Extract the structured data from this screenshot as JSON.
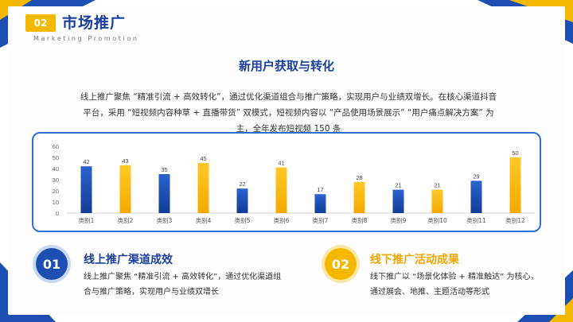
{
  "header": {
    "badge": "02",
    "title": "市场推广",
    "subtitle": "Marketing Promotion"
  },
  "main": {
    "section_title": "新用户获取与转化",
    "intro": "线上推广聚焦 “精准引流 + 高效转化”，通过优化渠道组合与推广策略，实现用户与业绩双增长。在核心渠道抖音平台，采用 “短视频内容种草 + 直播带货” 双模式，短视频内容以 “产品使用场景展示” “用户痛点解决方案” 为主，全年发布短视频 150 条"
  },
  "chart_data": {
    "type": "bar",
    "categories": [
      "类别1",
      "类别2",
      "类别3",
      "类别4",
      "类别5",
      "类别6",
      "类别7",
      "类别8",
      "类别9",
      "类别10",
      "类别11",
      "类别12"
    ],
    "values": [
      42,
      43,
      35,
      45,
      22,
      41,
      17,
      28,
      21,
      21,
      29,
      50
    ],
    "ylim": [
      0,
      60
    ],
    "yticks": [
      0,
      10,
      20,
      30,
      40,
      50,
      60
    ],
    "bar_colors": [
      "#1d4fb3",
      "#f5b800",
      "#1d4fb3",
      "#f5b800",
      "#1d4fb3",
      "#f5b800",
      "#1d4fb3",
      "#f5b800",
      "#1d4fb3",
      "#f5b800",
      "#1d4fb3",
      "#f5b800"
    ],
    "data_labels": true,
    "grid": false
  },
  "blocks": [
    {
      "number": "01",
      "title": "线上推广渠道成效",
      "text": "线上推广聚焦 “精准引流 + 高效转化”，通过优化渠道组合与推广策略，实现用户与业绩双增长"
    },
    {
      "number": "02",
      "title": "线下推广活动成果",
      "text": "线下推广以 “场景化体验 + 精准触达” 为核心，通过展会、地推、主题活动等形式"
    }
  ],
  "colors": {
    "primary_blue": "#1d4fb3",
    "accent_yellow": "#f5b800"
  }
}
